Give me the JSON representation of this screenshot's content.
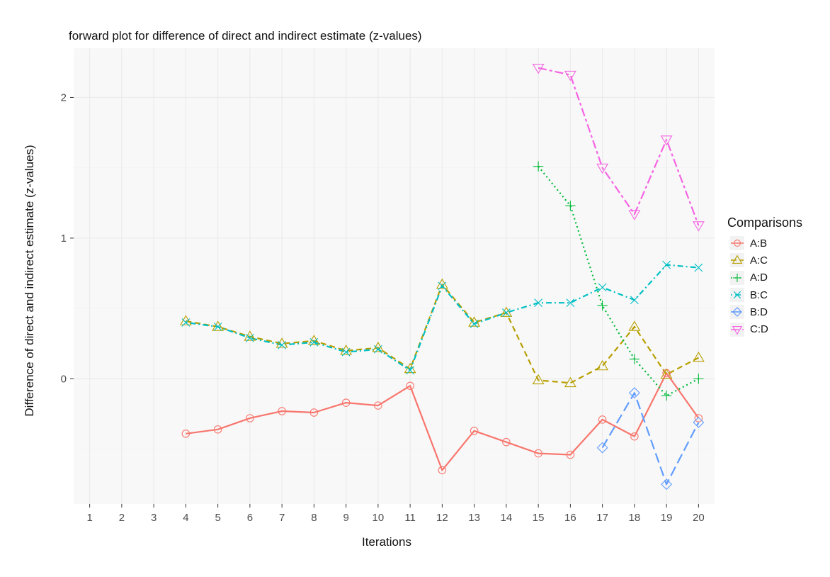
{
  "chart_data": {
    "type": "line",
    "title": "forward plot for difference of direct and indirect estimate (z-values)",
    "xlabel": "Iterations",
    "ylabel": "Difference of direct and indirect estimate (z-values)",
    "x": [
      1,
      2,
      3,
      4,
      5,
      6,
      7,
      8,
      9,
      10,
      11,
      12,
      13,
      14,
      15,
      16,
      17,
      18,
      19,
      20
    ],
    "xlim": [
      0.5,
      20.5
    ],
    "ylim": [
      -0.89,
      2.35
    ],
    "yticks": [
      0,
      1,
      2
    ],
    "grid": true,
    "legend_title": "Comparisons",
    "legend_position": "right",
    "series": [
      {
        "name": "A:B",
        "color": "#F8766D",
        "dash": "solid",
        "marker": "circle",
        "x": [
          4,
          5,
          6,
          7,
          8,
          9,
          10,
          11,
          12,
          13,
          14,
          15,
          16,
          17,
          18,
          19,
          20
        ],
        "values": [
          -0.39,
          -0.36,
          -0.28,
          -0.23,
          -0.24,
          -0.17,
          -0.19,
          -0.05,
          -0.65,
          -0.37,
          -0.45,
          -0.53,
          -0.54,
          -0.29,
          -0.41,
          0.04,
          -0.28
        ]
      },
      {
        "name": "A:C",
        "color": "#B79F00",
        "dash": "dashed",
        "marker": "triangle-up",
        "x": [
          4,
          5,
          6,
          7,
          8,
          9,
          10,
          11,
          12,
          13,
          14,
          15,
          16,
          17,
          18,
          19,
          20
        ],
        "values": [
          0.41,
          0.37,
          0.3,
          0.25,
          0.27,
          0.2,
          0.22,
          0.07,
          0.67,
          0.4,
          0.47,
          -0.01,
          -0.03,
          0.09,
          0.37,
          0.03,
          0.15
        ]
      },
      {
        "name": "A:D",
        "color": "#00BA38",
        "dash": "dotted",
        "marker": "plus",
        "x": [
          15,
          16,
          17,
          18,
          19,
          20
        ],
        "values": [
          1.51,
          1.23,
          0.52,
          0.14,
          -0.12,
          0.0
        ]
      },
      {
        "name": "B:C",
        "color": "#00BFC4",
        "dash": "dotdash",
        "marker": "cross",
        "x": [
          4,
          5,
          6,
          7,
          8,
          9,
          10,
          11,
          12,
          13,
          14,
          15,
          16,
          17,
          18,
          19,
          20
        ],
        "values": [
          0.4,
          0.37,
          0.29,
          0.24,
          0.26,
          0.19,
          0.21,
          0.06,
          0.66,
          0.39,
          0.47,
          0.54,
          0.54,
          0.65,
          0.56,
          0.81,
          0.79
        ]
      },
      {
        "name": "B:D",
        "color": "#619CFF",
        "dash": "longdash",
        "marker": "diamond",
        "x": [
          17,
          18,
          19,
          20
        ],
        "values": [
          -0.49,
          -0.1,
          -0.75,
          -0.31
        ]
      },
      {
        "name": "C:D",
        "color": "#F564E3",
        "dash": "twodash",
        "marker": "triangle-down",
        "x": [
          15,
          16,
          17,
          18,
          19,
          20
        ],
        "values": [
          2.21,
          2.16,
          1.5,
          1.17,
          1.7,
          1.09
        ]
      }
    ]
  }
}
